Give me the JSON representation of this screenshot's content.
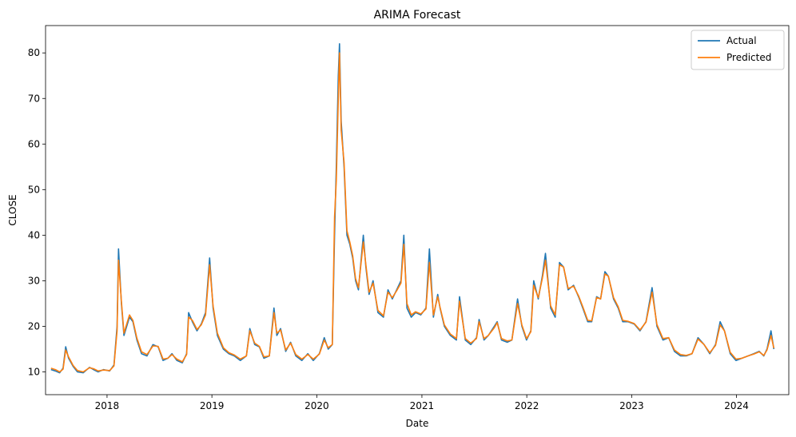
{
  "chart_data": {
    "type": "line",
    "title": "ARIMA Forecast",
    "xlabel": "Date",
    "ylabel": "CLOSE",
    "xlim": [
      "2017-06-01",
      "2024-07-01"
    ],
    "ylim": [
      5,
      86
    ],
    "x_ticks": [
      "2018-01-01",
      "2019-01-01",
      "2020-01-01",
      "2021-01-01",
      "2022-01-01",
      "2023-01-01",
      "2024-01-01"
    ],
    "x_tick_labels": [
      "2018",
      "2019",
      "2020",
      "2021",
      "2022",
      "2023",
      "2024"
    ],
    "y_ticks": [
      10,
      20,
      30,
      40,
      50,
      60,
      70,
      80
    ],
    "y_tick_labels": [
      "10",
      "20",
      "30",
      "40",
      "50",
      "60",
      "70",
      "80"
    ],
    "grid": false,
    "legend_position": "top-right",
    "x": [
      "2017-06-20",
      "2017-07-05",
      "2017-07-20",
      "2017-08-01",
      "2017-08-10",
      "2017-08-20",
      "2017-09-05",
      "2017-09-20",
      "2017-10-10",
      "2017-11-01",
      "2017-11-15",
      "2017-12-01",
      "2017-12-20",
      "2018-01-10",
      "2018-01-25",
      "2018-02-05",
      "2018-02-10",
      "2018-02-20",
      "2018-03-01",
      "2018-03-20",
      "2018-04-01",
      "2018-04-15",
      "2018-05-01",
      "2018-05-20",
      "2018-06-10",
      "2018-06-28",
      "2018-07-15",
      "2018-08-01",
      "2018-08-15",
      "2018-09-01",
      "2018-09-20",
      "2018-10-05",
      "2018-10-12",
      "2018-10-25",
      "2018-11-10",
      "2018-11-25",
      "2018-12-10",
      "2018-12-24",
      "2019-01-05",
      "2019-01-20",
      "2019-02-10",
      "2019-03-01",
      "2019-03-20",
      "2019-04-10",
      "2019-05-01",
      "2019-05-13",
      "2019-05-30",
      "2019-06-15",
      "2019-07-01",
      "2019-07-20",
      "2019-08-05",
      "2019-08-15",
      "2019-08-28",
      "2019-09-15",
      "2019-10-02",
      "2019-10-20",
      "2019-11-10",
      "2019-12-01",
      "2019-12-20",
      "2020-01-10",
      "2020-01-27",
      "2020-02-10",
      "2020-02-24",
      "2020-03-03",
      "2020-03-09",
      "2020-03-16",
      "2020-03-20",
      "2020-03-26",
      "2020-04-05",
      "2020-04-15",
      "2020-04-25",
      "2020-05-05",
      "2020-05-15",
      "2020-05-25",
      "2020-06-11",
      "2020-06-20",
      "2020-07-01",
      "2020-07-15",
      "2020-08-01",
      "2020-08-20",
      "2020-09-05",
      "2020-09-20",
      "2020-10-05",
      "2020-10-20",
      "2020-10-30",
      "2020-11-10",
      "2020-11-25",
      "2020-12-10",
      "2020-12-28",
      "2021-01-15",
      "2021-01-27",
      "2021-02-10",
      "2021-02-25",
      "2021-03-05",
      "2021-03-20",
      "2021-04-10",
      "2021-05-01",
      "2021-05-12",
      "2021-06-01",
      "2021-06-20",
      "2021-07-10",
      "2021-07-19",
      "2021-08-05",
      "2021-08-20",
      "2021-09-10",
      "2021-09-20",
      "2021-10-05",
      "2021-10-25",
      "2021-11-10",
      "2021-11-30",
      "2021-12-15",
      "2021-12-31",
      "2022-01-15",
      "2022-01-25",
      "2022-02-10",
      "2022-02-24",
      "2022-03-07",
      "2022-03-25",
      "2022-04-10",
      "2022-04-25",
      "2022-05-09",
      "2022-05-25",
      "2022-06-13",
      "2022-06-30",
      "2022-07-15",
      "2022-08-01",
      "2022-08-15",
      "2022-09-01",
      "2022-09-15",
      "2022-09-30",
      "2022-10-12",
      "2022-10-30",
      "2022-11-15",
      "2022-12-01",
      "2022-12-20",
      "2023-01-10",
      "2023-01-30",
      "2023-02-20",
      "2023-03-13",
      "2023-03-30",
      "2023-04-20",
      "2023-05-10",
      "2023-05-30",
      "2023-06-20",
      "2023-07-10",
      "2023-07-30",
      "2023-08-20",
      "2023-09-10",
      "2023-09-30",
      "2023-10-20",
      "2023-11-05",
      "2023-11-20",
      "2023-12-10",
      "2023-12-30",
      "2024-01-20",
      "2024-02-10",
      "2024-03-01",
      "2024-03-20",
      "2024-04-05",
      "2024-04-16",
      "2024-04-30",
      "2024-05-10"
    ],
    "series": [
      {
        "name": "Actual",
        "color": "#1f77b4",
        "values": [
          10.5,
          10.2,
          9.8,
          10.8,
          15.5,
          13.0,
          11.2,
          10.0,
          9.8,
          11.0,
          10.5,
          10.0,
          10.5,
          10.2,
          11.5,
          20.0,
          37.0,
          25.0,
          18.0,
          22.0,
          21.0,
          17.0,
          14.0,
          13.5,
          16.0,
          15.5,
          12.5,
          13.0,
          14.0,
          12.5,
          12.0,
          14.0,
          23.0,
          21.0,
          19.0,
          20.5,
          23.0,
          35.0,
          24.0,
          18.0,
          15.0,
          14.0,
          13.5,
          12.5,
          13.5,
          19.5,
          16.0,
          15.5,
          13.0,
          13.5,
          24.0,
          18.0,
          19.5,
          14.5,
          16.5,
          13.5,
          12.5,
          14.0,
          12.5,
          14.0,
          17.5,
          15.0,
          16.0,
          40.0,
          55.0,
          75.0,
          82.0,
          65.0,
          55.0,
          40.0,
          38.0,
          35.0,
          30.0,
          28.0,
          40.0,
          33.0,
          27.0,
          30.0,
          23.0,
          22.0,
          28.0,
          26.0,
          28.0,
          30.0,
          40.0,
          24.0,
          22.0,
          23.0,
          22.5,
          24.0,
          37.0,
          22.0,
          27.0,
          24.0,
          20.0,
          18.0,
          17.0,
          26.5,
          17.0,
          16.0,
          17.5,
          21.5,
          17.0,
          18.0,
          20.0,
          21.0,
          17.0,
          16.5,
          17.0,
          26.0,
          20.0,
          17.0,
          19.0,
          30.0,
          26.0,
          31.0,
          36.0,
          24.0,
          22.0,
          34.0,
          33.0,
          28.0,
          29.0,
          26.5,
          24.0,
          21.0,
          21.0,
          26.5,
          26.0,
          32.0,
          31.0,
          26.0,
          24.0,
          21.0,
          21.0,
          20.5,
          19.0,
          21.0,
          28.5,
          20.0,
          17.0,
          17.5,
          14.5,
          13.5,
          13.5,
          14.0,
          17.5,
          16.0,
          14.0,
          16.0,
          21.0,
          19.0,
          14.0,
          12.5,
          13.0,
          13.5,
          14.0,
          14.5,
          13.5,
          15.0,
          19.0,
          15.0
        ]
      },
      {
        "name": "Predicted",
        "color": "#ff7f0e",
        "values": [
          10.8,
          10.5,
          10.0,
          10.6,
          14.8,
          13.3,
          11.4,
          10.3,
          10.0,
          10.9,
          10.7,
          10.2,
          10.4,
          10.3,
          11.3,
          19.0,
          34.5,
          25.5,
          18.5,
          22.5,
          21.3,
          17.4,
          14.4,
          13.8,
          15.7,
          15.6,
          12.8,
          13.0,
          13.8,
          12.8,
          12.2,
          13.8,
          22.0,
          21.3,
          19.3,
          20.3,
          22.5,
          33.5,
          24.5,
          18.5,
          15.3,
          14.2,
          13.7,
          12.8,
          13.5,
          19.0,
          16.3,
          15.6,
          13.3,
          13.5,
          23.0,
          18.5,
          19.2,
          14.8,
          16.3,
          13.8,
          12.8,
          13.8,
          12.8,
          13.9,
          17.0,
          15.3,
          16.0,
          44.0,
          52.0,
          70.0,
          80.0,
          63.0,
          56.0,
          41.0,
          38.5,
          35.5,
          30.5,
          28.5,
          38.5,
          33.5,
          27.5,
          29.5,
          23.5,
          22.3,
          27.5,
          26.3,
          27.8,
          29.5,
          38.0,
          25.0,
          22.5,
          23.2,
          22.7,
          23.8,
          34.0,
          22.5,
          26.5,
          24.2,
          20.3,
          18.3,
          17.3,
          25.5,
          17.3,
          16.3,
          17.3,
          21.0,
          17.3,
          18.0,
          19.7,
          20.8,
          17.3,
          16.8,
          17.0,
          25.0,
          20.3,
          17.3,
          18.8,
          29.0,
          26.3,
          30.5,
          34.5,
          24.5,
          22.5,
          33.5,
          33.0,
          28.3,
          28.8,
          26.7,
          24.3,
          21.3,
          21.2,
          26.3,
          26.0,
          31.5,
          31.0,
          26.3,
          24.3,
          21.3,
          21.1,
          20.6,
          19.2,
          20.9,
          27.5,
          20.4,
          17.3,
          17.5,
          14.8,
          13.8,
          13.6,
          14.0,
          17.2,
          16.0,
          14.2,
          15.8,
          20.3,
          19.0,
          14.3,
          12.8,
          13.0,
          13.5,
          13.9,
          14.4,
          13.6,
          14.8,
          18.0,
          15.2
        ]
      }
    ]
  }
}
